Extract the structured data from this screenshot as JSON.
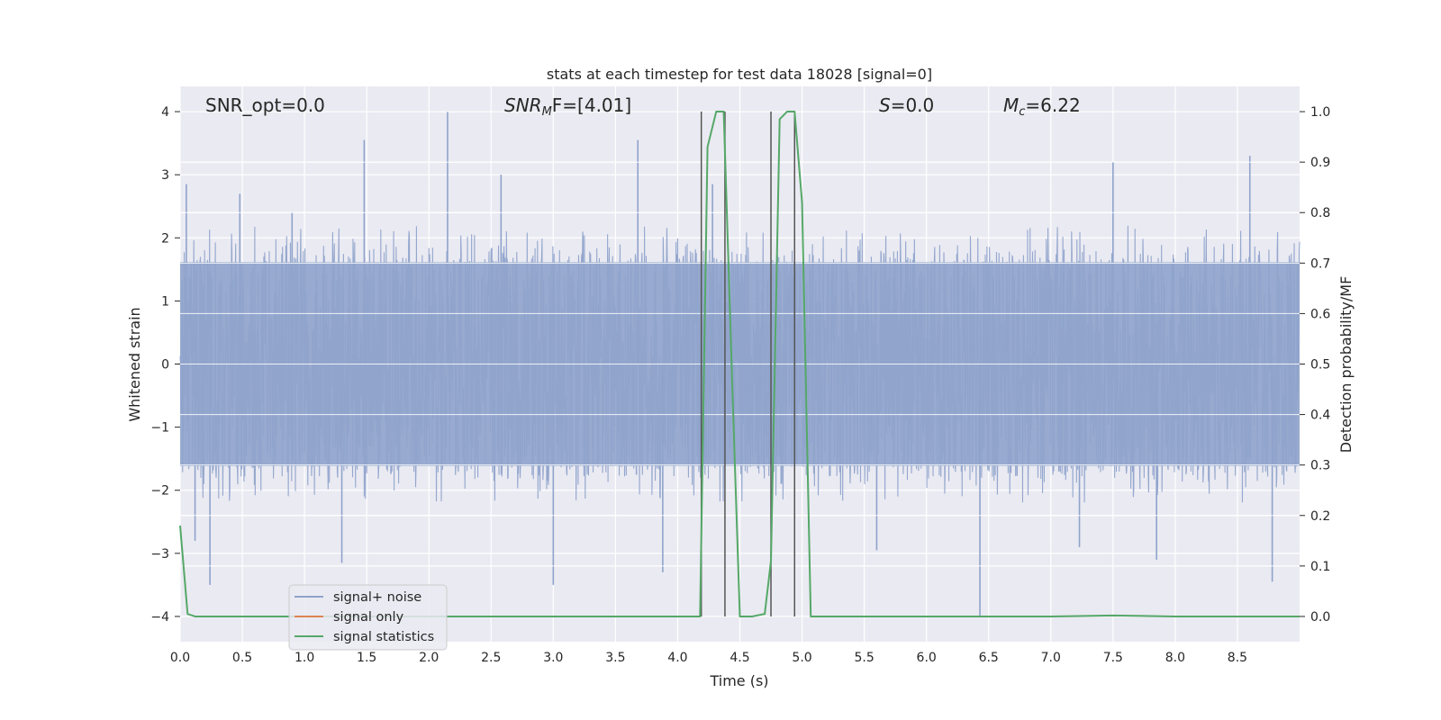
{
  "chart_data": {
    "type": "line",
    "title": "stats at each timestep for test data 18028 [signal=0]",
    "xlabel": "Time (s)",
    "ylabel": "Whitened strain",
    "y2label": "Detection probability/MF",
    "xlim": [
      0.0,
      9.0
    ],
    "ylim": [
      -4.4,
      4.4
    ],
    "y2lim": [
      -0.05,
      1.05
    ],
    "x_ticks": [
      "0.0",
      "0.5",
      "1.0",
      "1.5",
      "2.0",
      "2.5",
      "3.0",
      "3.5",
      "4.0",
      "4.5",
      "5.0",
      "5.5",
      "6.0",
      "6.5",
      "7.0",
      "7.5",
      "8.0",
      "8.5"
    ],
    "y_ticks": [
      "4",
      "3",
      "2",
      "1",
      "0",
      "−1",
      "−2",
      "−3",
      "−4"
    ],
    "y2_ticks": [
      "1.0",
      "0.9",
      "0.8",
      "0.7",
      "0.6",
      "0.5",
      "0.4",
      "0.3",
      "0.2",
      "0.1",
      "0.0"
    ],
    "grid": true,
    "legend": "lower-left",
    "annotations": {
      "snr_opt": "SNR_opt=0.0",
      "snr_mf_main": "SNR",
      "snr_mf_sub": "M",
      "snr_mf_tail": "F=[4.01]",
      "s_var": "S",
      "s_val": "=0.0",
      "mc_var": "M",
      "mc_sub": "c",
      "mc_val": "=6.22"
    },
    "series": [
      {
        "name": "signal+ noise",
        "color": "#8fa3cb",
        "kind": "noise",
        "sample_rate_hz": 300,
        "envelope_abs": 1.7,
        "peaks": [
          [
            0.05,
            2.85
          ],
          [
            0.12,
            -2.8
          ],
          [
            0.24,
            -3.5
          ],
          [
            0.48,
            2.7
          ],
          [
            0.9,
            2.4
          ],
          [
            1.3,
            -3.15
          ],
          [
            1.48,
            3.55
          ],
          [
            2.15,
            4.0
          ],
          [
            2.58,
            3.0
          ],
          [
            3.0,
            -3.5
          ],
          [
            3.68,
            3.55
          ],
          [
            3.88,
            -3.3
          ],
          [
            4.28,
            2.85
          ],
          [
            5.6,
            -2.95
          ],
          [
            6.43,
            -4.0
          ],
          [
            7.23,
            -2.9
          ],
          [
            7.5,
            3.2
          ],
          [
            7.85,
            -3.1
          ],
          [
            8.6,
            3.3
          ],
          [
            8.78,
            -3.45
          ]
        ]
      },
      {
        "name": "signal only",
        "color": "#dd8452",
        "kind": "line",
        "x": [
          0.0,
          9.0
        ],
        "y": [
          0.0,
          0.0
        ]
      },
      {
        "name": "signal statistics",
        "color": "#55a868",
        "kind": "line",
        "axis": "y2",
        "x": [
          0.0,
          0.06,
          0.12,
          0.5,
          1.0,
          2.0,
          3.0,
          4.0,
          4.18,
          4.24,
          4.31,
          4.37,
          4.44,
          4.5,
          4.55,
          4.6,
          4.7,
          4.75,
          4.82,
          4.88,
          4.94,
          5.0,
          5.07,
          5.12,
          6.0,
          7.0,
          7.5,
          8.0,
          9.0
        ],
        "y": [
          0.18,
          0.005,
          0.0,
          0.0,
          0.0,
          0.0,
          0.0,
          0.0,
          0.0,
          0.93,
          1.0,
          1.0,
          0.45,
          0.0,
          0.0,
          0.0,
          0.005,
          0.11,
          0.985,
          1.0,
          1.0,
          0.82,
          0.0,
          0.0,
          0.0,
          0.0,
          0.002,
          0.0,
          0.0
        ]
      }
    ],
    "vertical_lines": [
      4.19,
      4.38,
      4.75,
      4.94
    ]
  }
}
